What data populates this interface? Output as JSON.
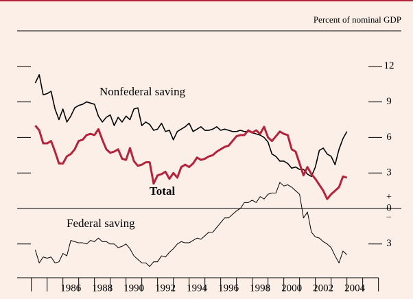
{
  "chart_data": {
    "type": "line",
    "subtitle": "Percent of nominal GDP",
    "x": [
      1984.25,
      1984.5,
      1984.75,
      1985,
      1985.25,
      1985.5,
      1985.75,
      1986,
      1986.25,
      1986.5,
      1986.75,
      1987,
      1987.25,
      1987.5,
      1987.75,
      1988,
      1988.25,
      1988.5,
      1988.75,
      1989,
      1989.25,
      1989.5,
      1989.75,
      1990,
      1990.25,
      1990.5,
      1990.75,
      1991,
      1991.25,
      1991.5,
      1991.75,
      1992,
      1992.25,
      1992.5,
      1992.75,
      1993,
      1993.25,
      1993.5,
      1993.75,
      1994,
      1994.25,
      1994.5,
      1994.75,
      1995,
      1995.25,
      1995.5,
      1995.75,
      1996,
      1996.25,
      1996.5,
      1996.75,
      1997,
      1997.25,
      1997.5,
      1997.75,
      1998,
      1998.25,
      1998.5,
      1998.75,
      1999,
      1999.25,
      1999.5,
      1999.75,
      2000,
      2000.25,
      2000.5,
      2000.75,
      2001,
      2001.25,
      2001.5,
      2001.75,
      2002,
      2002.25,
      2002.5,
      2002.75,
      2003,
      2003.25,
      2003.5,
      2003.75,
      2004
    ],
    "series": [
      {
        "name": "Nonfederal saving",
        "color": "#000000",
        "width": 1.6,
        "values": [
          10.6,
          11.3,
          9.6,
          9.7,
          9.9,
          8.4,
          7.5,
          8.4,
          7.3,
          7.8,
          8.5,
          8.7,
          8.8,
          9.0,
          8.9,
          8.8,
          7.8,
          7.3,
          7.7,
          7.9,
          7.0,
          7.7,
          7.3,
          7.8,
          7.5,
          8.4,
          8.5,
          7.0,
          7.3,
          7.1,
          6.6,
          6.7,
          7.2,
          6.5,
          6.6,
          5.8,
          6.5,
          6.7,
          6.9,
          7.2,
          6.5,
          6.7,
          6.9,
          6.6,
          6.6,
          6.7,
          6.9,
          6.6,
          6.7,
          6.6,
          6.5,
          6.5,
          6.6,
          6.5,
          6.5,
          6.4,
          6.3,
          6.2,
          6.0,
          5.6,
          4.6,
          4.4,
          4.0,
          4.0,
          3.8,
          3.4,
          3.5,
          3.3,
          3.3,
          2.9,
          2.7,
          3.5,
          4.9,
          5.1,
          4.6,
          4.4,
          3.7,
          5.0,
          5.9,
          6.5
        ]
      },
      {
        "name": "Total",
        "color": "#b5233b",
        "width": 3,
        "values": [
          7.0,
          6.6,
          5.5,
          5.5,
          5.7,
          4.8,
          3.8,
          3.8,
          4.4,
          4.6,
          5.0,
          5.7,
          5.8,
          6.2,
          6.3,
          6.2,
          6.7,
          5.8,
          5.0,
          4.7,
          4.8,
          5.0,
          4.2,
          4.1,
          5.1,
          4.0,
          3.6,
          3.7,
          3.9,
          3.9,
          2.1,
          2.8,
          2.9,
          3.1,
          2.5,
          3.0,
          2.6,
          3.5,
          3.7,
          3.5,
          3.8,
          4.3,
          4.1,
          4.2,
          4.4,
          4.5,
          4.8,
          5.0,
          5.2,
          5.3,
          5.7,
          6.1,
          6.2,
          6.2,
          6.6,
          6.4,
          6.6,
          6.3,
          6.9,
          6.0,
          5.7,
          6.1,
          6.5,
          6.3,
          6.2,
          5.0,
          4.8,
          3.8,
          2.8,
          3.5,
          2.9,
          2.5,
          2.0,
          1.5,
          0.8,
          1.2,
          1.5,
          1.8,
          2.7,
          2.6
        ]
      },
      {
        "name": "Federal saving",
        "color": "#000000",
        "width": 1,
        "values": [
          -3.5,
          -4.6,
          -4.1,
          -4.2,
          -4.1,
          -4.6,
          -4.5,
          -3.8,
          -4.0,
          -2.7,
          -2.8,
          -2.9,
          -2.9,
          -3.0,
          -2.7,
          -2.8,
          -2.5,
          -2.8,
          -2.8,
          -3.0,
          -3.0,
          -3.3,
          -3.2,
          -3.0,
          -3.4,
          -4.0,
          -4.3,
          -4.6,
          -4.6,
          -4.9,
          -4.5,
          -4.5,
          -4.0,
          -4.1,
          -3.7,
          -3.4,
          -3.0,
          -2.8,
          -2.9,
          -2.9,
          -2.7,
          -2.5,
          -2.6,
          -2.3,
          -2.0,
          -2.0,
          -1.6,
          -1.2,
          -0.8,
          -0.8,
          -0.5,
          -0.2,
          0.0,
          0.5,
          0.5,
          0.7,
          0.5,
          1.0,
          0.8,
          1.2,
          1.3,
          1.3,
          2.2,
          1.9,
          2.0,
          1.8,
          1.5,
          1.2,
          -0.8,
          -0.3,
          -2.0,
          -2.4,
          -2.5,
          -2.8,
          -3.0,
          -3.3,
          -4.0,
          -4.6,
          -3.6,
          -3.9
        ]
      }
    ],
    "xlim": [
      1983.1,
      2007.45
    ],
    "xticks": [
      {
        "value": 1986.5,
        "label": "1986"
      },
      {
        "value": 1988.5,
        "label": "1988"
      },
      {
        "value": 1990.5,
        "label": "1990"
      },
      {
        "value": 1992.5,
        "label": "1992"
      },
      {
        "value": 1994.5,
        "label": "1994"
      },
      {
        "value": 1996.5,
        "label": "1996"
      },
      {
        "value": 1998.5,
        "label": "1998"
      },
      {
        "value": 2000.5,
        "label": "2000"
      },
      {
        "value": 2002.5,
        "label": "2002"
      },
      {
        "value": 2004.5,
        "label": "2004"
      }
    ],
    "xtick_marks": [
      1984,
      1985,
      1986,
      1987,
      1988,
      1989,
      1990,
      1991,
      1992,
      1993,
      1994,
      1995,
      1996,
      1997,
      1998,
      1999,
      2000,
      2001,
      2002,
      2003,
      2004,
      2005,
      2006
    ],
    "ylim": [
      -5.85,
      15
    ],
    "yticks": [
      {
        "value": -3,
        "label": "3"
      },
      0,
      3,
      6,
      9,
      12
    ],
    "zero_signs": [
      "+",
      "−"
    ]
  }
}
